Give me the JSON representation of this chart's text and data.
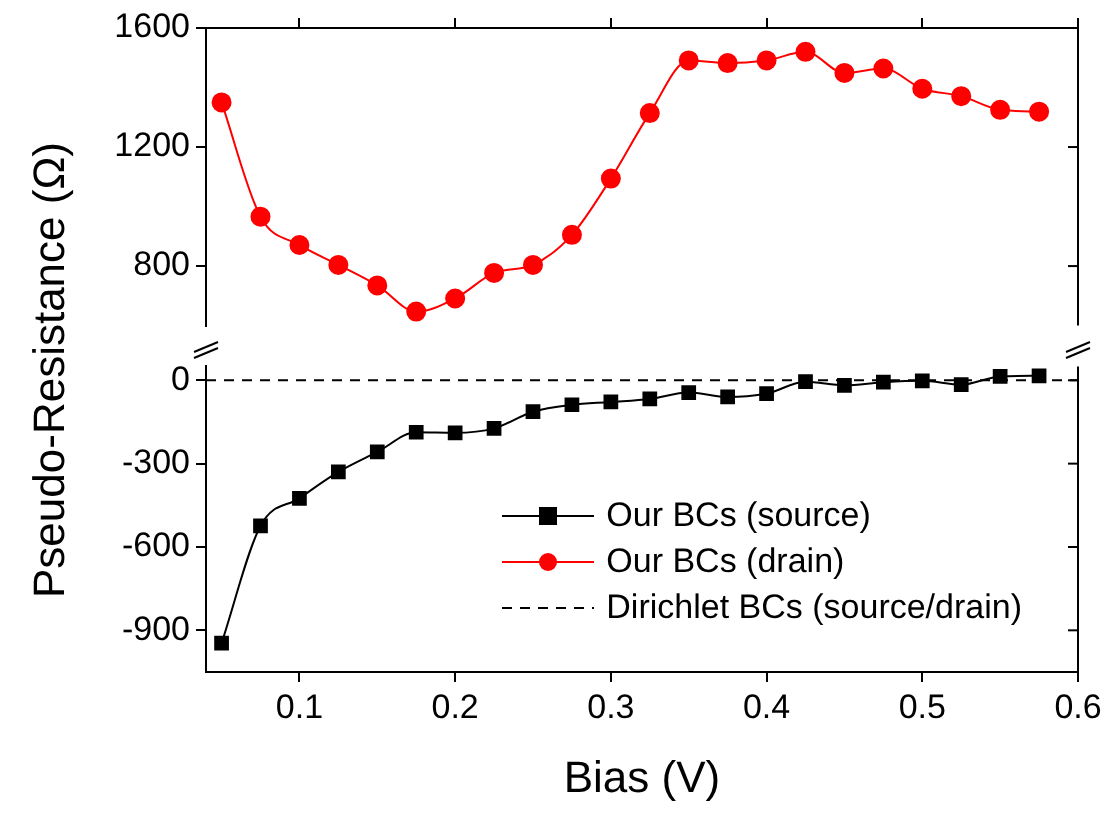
{
  "chart_data": [
    {
      "type": "line",
      "ylabel": "Pseudo-Resistance (Ω)",
      "x": [
        0.05,
        0.075,
        0.1,
        0.125,
        0.15,
        0.175,
        0.2,
        0.225,
        0.25,
        0.275,
        0.3,
        0.325,
        0.35,
        0.375,
        0.4,
        0.425,
        0.45,
        0.475,
        0.5,
        0.525,
        0.55,
        0.575
      ],
      "series": [
        {
          "name": "Our BCs (drain)",
          "color": "#ff0000",
          "values": [
            1350,
            966,
            871,
            804,
            735,
            647,
            691,
            777,
            804,
            905,
            1094,
            1314,
            1491,
            1482,
            1491,
            1520,
            1449,
            1464,
            1396,
            1371,
            1325,
            1319
          ]
        }
      ],
      "xlim": [
        0.04,
        0.6
      ],
      "xticks": [
        0.1,
        0.2,
        0.3,
        0.4,
        0.5,
        0.6
      ],
      "ylim": [
        600,
        1600
      ],
      "yticks": [
        800,
        1200,
        1600
      ],
      "tick_labels": "y",
      "marker": "circle",
      "grid": false
    },
    {
      "type": "line",
      "xlabel": "Bias (V)",
      "x": [
        0.05,
        0.075,
        0.1,
        0.125,
        0.15,
        0.175,
        0.2,
        0.225,
        0.25,
        0.275,
        0.3,
        0.325,
        0.35,
        0.375,
        0.4,
        0.425,
        0.45,
        0.475,
        0.5,
        0.525,
        0.55,
        0.575
      ],
      "series": [
        {
          "name": "Our BCs (source)",
          "color": "#000000",
          "values": [
            -946,
            -524,
            -425,
            -330,
            -258,
            -187,
            -189,
            -173,
            -113,
            -88,
            -78,
            -67,
            -44,
            -60,
            -48,
            -5,
            -18,
            -7,
            -2,
            -16,
            14,
            16
          ]
        }
      ],
      "ref_lines": [
        {
          "axis": "y",
          "value": 0,
          "label": "Dirichlet BCs (source/drain)",
          "color": "#000000",
          "line_style": "dashed"
        }
      ],
      "xlim": [
        0.04,
        0.6
      ],
      "xticks": [
        0.1,
        0.2,
        0.3,
        0.4,
        0.5,
        0.6
      ],
      "ylim": [
        -1050,
        50
      ],
      "yticks": [
        -900,
        -600,
        -300,
        0
      ],
      "marker": "square",
      "grid": false,
      "legend": "bottom right"
    }
  ]
}
